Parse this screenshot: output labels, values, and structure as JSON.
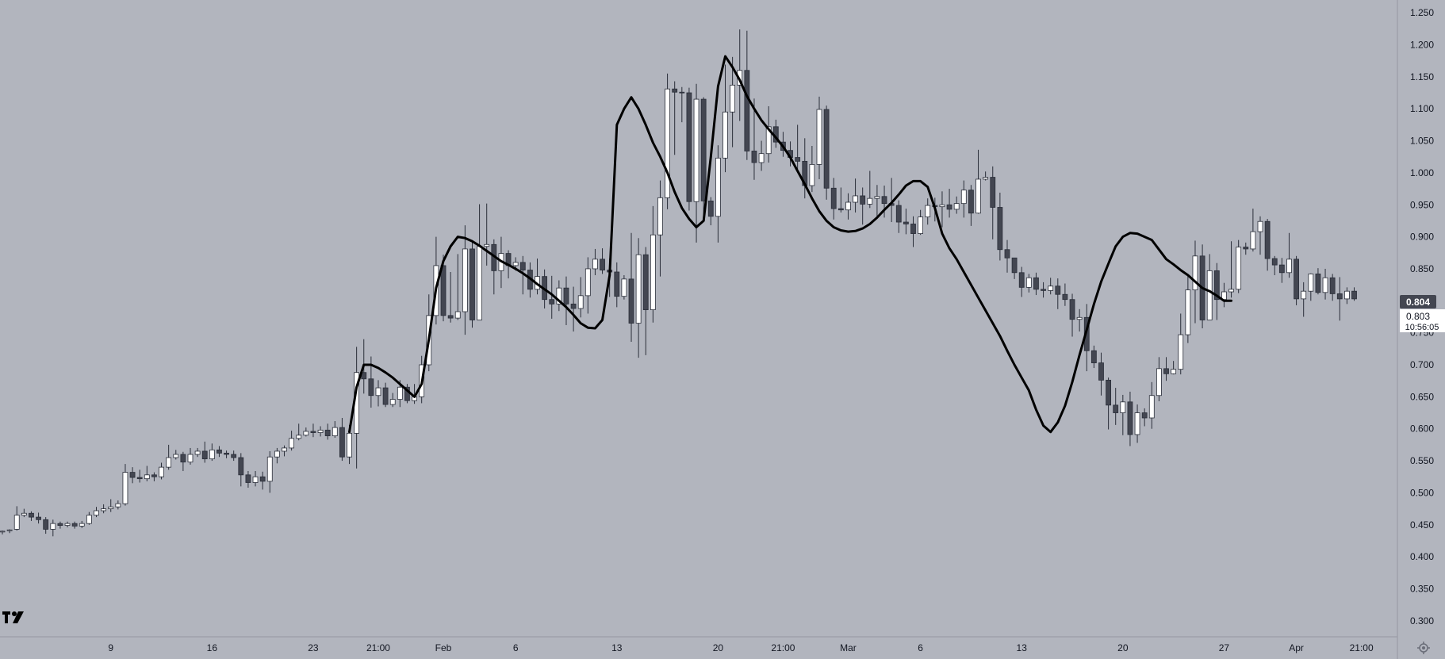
{
  "chart_data": {
    "type": "candlestick",
    "y_ticks": [
      "0.300",
      "0.350",
      "0.400",
      "0.450",
      "0.500",
      "0.550",
      "0.600",
      "0.650",
      "0.700",
      "0.750",
      "0.800",
      "0.850",
      "0.900",
      "0.950",
      "1.000",
      "1.050",
      "1.100",
      "1.150",
      "1.200",
      "1.250"
    ],
    "y_tick_values": [
      0.3,
      0.35,
      0.4,
      0.45,
      0.5,
      0.55,
      0.6,
      0.65,
      0.7,
      0.75,
      0.8,
      0.85,
      0.9,
      0.95,
      1.0,
      1.05,
      1.1,
      1.15,
      1.2,
      1.25
    ],
    "ylim": [
      0.275,
      1.27
    ],
    "x_ticks": [
      {
        "label": "9",
        "index": 15
      },
      {
        "label": "16",
        "index": 29
      },
      {
        "label": "23",
        "index": 43
      },
      {
        "label": "21:00",
        "index": 52
      },
      {
        "label": "Feb",
        "index": 61
      },
      {
        "label": "6",
        "index": 71
      },
      {
        "label": "13",
        "index": 85
      },
      {
        "label": "20",
        "index": 99
      },
      {
        "label": "21:00",
        "index": 108
      },
      {
        "label": "Mar",
        "index": 117
      },
      {
        "label": "6",
        "index": 127
      },
      {
        "label": "13",
        "index": 141
      },
      {
        "label": "20",
        "index": 155
      },
      {
        "label": "27",
        "index": 169
      },
      {
        "label": "Apr",
        "index": 179
      },
      {
        "label": "21:00",
        "index": 188
      }
    ],
    "candles": [
      [
        0.44,
        0.44,
        0.435,
        0.441
      ],
      [
        0.441,
        0.442,
        0.437,
        0.443
      ],
      [
        0.443,
        0.465,
        0.441,
        0.479
      ],
      [
        0.465,
        0.468,
        0.462,
        0.475
      ],
      [
        0.468,
        0.462,
        0.456,
        0.471
      ],
      [
        0.462,
        0.458,
        0.452,
        0.469
      ],
      [
        0.458,
        0.443,
        0.436,
        0.462
      ],
      [
        0.443,
        0.452,
        0.432,
        0.458
      ],
      [
        0.452,
        0.449,
        0.444,
        0.455
      ],
      [
        0.449,
        0.452,
        0.446,
        0.455
      ],
      [
        0.452,
        0.448,
        0.444,
        0.455
      ],
      [
        0.448,
        0.452,
        0.445,
        0.456
      ],
      [
        0.452,
        0.465,
        0.45,
        0.47
      ],
      [
        0.465,
        0.472,
        0.462,
        0.478
      ],
      [
        0.472,
        0.475,
        0.468,
        0.482
      ],
      [
        0.475,
        0.478,
        0.47,
        0.49
      ],
      [
        0.478,
        0.483,
        0.474,
        0.488
      ],
      [
        0.483,
        0.532,
        0.48,
        0.545
      ],
      [
        0.532,
        0.524,
        0.515,
        0.54
      ],
      [
        0.524,
        0.522,
        0.516,
        0.536
      ],
      [
        0.522,
        0.528,
        0.518,
        0.542
      ],
      [
        0.528,
        0.525,
        0.518,
        0.532
      ],
      [
        0.525,
        0.54,
        0.521,
        0.547
      ],
      [
        0.54,
        0.555,
        0.536,
        0.575
      ],
      [
        0.555,
        0.56,
        0.552,
        0.567
      ],
      [
        0.56,
        0.548,
        0.534,
        0.564
      ],
      [
        0.548,
        0.56,
        0.544,
        0.57
      ],
      [
        0.56,
        0.565,
        0.556,
        0.57
      ],
      [
        0.565,
        0.553,
        0.547,
        0.58
      ],
      [
        0.553,
        0.567,
        0.55,
        0.577
      ],
      [
        0.567,
        0.562,
        0.556,
        0.573
      ],
      [
        0.562,
        0.56,
        0.554,
        0.566
      ],
      [
        0.56,
        0.555,
        0.55,
        0.566
      ],
      [
        0.555,
        0.528,
        0.51,
        0.562
      ],
      [
        0.528,
        0.516,
        0.508,
        0.534
      ],
      [
        0.516,
        0.525,
        0.51,
        0.534
      ],
      [
        0.525,
        0.518,
        0.505,
        0.533
      ],
      [
        0.518,
        0.556,
        0.5,
        0.565
      ],
      [
        0.556,
        0.565,
        0.546,
        0.57
      ],
      [
        0.565,
        0.57,
        0.557,
        0.574
      ],
      [
        0.57,
        0.585,
        0.566,
        0.597
      ],
      [
        0.585,
        0.59,
        0.582,
        0.608
      ],
      [
        0.59,
        0.596,
        0.588,
        0.602
      ],
      [
        0.596,
        0.594,
        0.587,
        0.608
      ],
      [
        0.594,
        0.598,
        0.588,
        0.604
      ],
      [
        0.598,
        0.589,
        0.583,
        0.608
      ],
      [
        0.589,
        0.602,
        0.586,
        0.612
      ],
      [
        0.602,
        0.556,
        0.55,
        0.617
      ],
      [
        0.556,
        0.593,
        0.545,
        0.606
      ],
      [
        0.593,
        0.688,
        0.538,
        0.728
      ],
      [
        0.688,
        0.678,
        0.655,
        0.74
      ],
      [
        0.678,
        0.652,
        0.633,
        0.713
      ],
      [
        0.652,
        0.664,
        0.635,
        0.676
      ],
      [
        0.664,
        0.638,
        0.634,
        0.672
      ],
      [
        0.638,
        0.646,
        0.634,
        0.656
      ],
      [
        0.646,
        0.665,
        0.634,
        0.676
      ],
      [
        0.665,
        0.644,
        0.64,
        0.67
      ],
      [
        0.644,
        0.65,
        0.639,
        0.67
      ],
      [
        0.65,
        0.7,
        0.64,
        0.714
      ],
      [
        0.7,
        0.777,
        0.69,
        0.81
      ],
      [
        0.777,
        0.855,
        0.763,
        0.9
      ],
      [
        0.855,
        0.777,
        0.768,
        0.872
      ],
      [
        0.777,
        0.773,
        0.766,
        0.845
      ],
      [
        0.773,
        0.783,
        0.77,
        0.873
      ],
      [
        0.783,
        0.881,
        0.747,
        0.918
      ],
      [
        0.881,
        0.77,
        0.758,
        0.893
      ],
      [
        0.77,
        0.885,
        0.775,
        0.951
      ],
      [
        0.885,
        0.888,
        0.855,
        0.952
      ],
      [
        0.888,
        0.847,
        0.81,
        0.896
      ],
      [
        0.847,
        0.874,
        0.82,
        0.9
      ],
      [
        0.874,
        0.855,
        0.835,
        0.879
      ],
      [
        0.855,
        0.86,
        0.847,
        0.868
      ],
      [
        0.86,
        0.848,
        0.81,
        0.87
      ],
      [
        0.848,
        0.818,
        0.805,
        0.86
      ],
      [
        0.818,
        0.838,
        0.81,
        0.866
      ],
      [
        0.838,
        0.802,
        0.788,
        0.849
      ],
      [
        0.802,
        0.795,
        0.772,
        0.839
      ],
      [
        0.795,
        0.82,
        0.784,
        0.832
      ],
      [
        0.82,
        0.795,
        0.762,
        0.838
      ],
      [
        0.795,
        0.788,
        0.752,
        0.822
      ],
      [
        0.788,
        0.808,
        0.774,
        0.837
      ],
      [
        0.808,
        0.85,
        0.78,
        0.868
      ],
      [
        0.85,
        0.865,
        0.84,
        0.881
      ],
      [
        0.865,
        0.848,
        0.842,
        0.882
      ],
      [
        0.848,
        0.845,
        0.806,
        0.866
      ],
      [
        0.845,
        0.807,
        0.79,
        0.86
      ],
      [
        0.807,
        0.834,
        0.802,
        0.84
      ],
      [
        0.834,
        0.765,
        0.736,
        0.906
      ],
      [
        0.765,
        0.872,
        0.711,
        0.898
      ],
      [
        0.872,
        0.786,
        0.715,
        0.884
      ],
      [
        0.786,
        0.903,
        0.766,
        0.948
      ],
      [
        0.903,
        0.961,
        0.838,
        0.988
      ],
      [
        0.961,
        1.131,
        0.943,
        1.155
      ],
      [
        1.131,
        1.126,
        1.028,
        1.143
      ],
      [
        1.126,
        1.125,
        1.079,
        1.134
      ],
      [
        1.125,
        0.955,
        0.941,
        1.133
      ],
      [
        0.955,
        1.115,
        0.891,
        1.139
      ],
      [
        1.115,
        0.956,
        0.931,
        1.118
      ],
      [
        0.956,
        0.932,
        0.918,
        0.962
      ],
      [
        0.932,
        1.023,
        0.891,
        1.043
      ],
      [
        1.023,
        1.095,
        1.001,
        1.169
      ],
      [
        1.095,
        1.137,
        1.04,
        1.181
      ],
      [
        1.137,
        1.16,
        1.081,
        1.224
      ],
      [
        1.16,
        1.034,
        1.02,
        1.222
      ],
      [
        1.034,
        1.016,
        0.989,
        1.116
      ],
      [
        1.016,
        1.03,
        1.003,
        1.05
      ],
      [
        1.03,
        1.072,
        1.016,
        1.104
      ],
      [
        1.072,
        1.048,
        1.039,
        1.083
      ],
      [
        1.048,
        1.035,
        1.025,
        1.064
      ],
      [
        1.035,
        1.024,
        1.01,
        1.049
      ],
      [
        1.024,
        1.018,
        1.006,
        1.075
      ],
      [
        1.018,
        0.98,
        0.96,
        1.054
      ],
      [
        0.98,
        1.013,
        0.97,
        1.042
      ],
      [
        1.013,
        1.099,
        0.99,
        1.119
      ],
      [
        1.099,
        0.976,
        0.958,
        1.105
      ],
      [
        0.976,
        0.944,
        0.927,
        0.992
      ],
      [
        0.944,
        0.942,
        0.938,
        0.977
      ],
      [
        0.942,
        0.954,
        0.927,
        0.968
      ],
      [
        0.954,
        0.964,
        0.938,
        0.991
      ],
      [
        0.964,
        0.951,
        0.919,
        0.977
      ],
      [
        0.951,
        0.96,
        0.945,
        1.003
      ],
      [
        0.96,
        0.963,
        0.93,
        0.981
      ],
      [
        0.963,
        0.952,
        0.93,
        0.98
      ],
      [
        0.952,
        0.949,
        0.923,
        0.992
      ],
      [
        0.949,
        0.923,
        0.906,
        0.957
      ],
      [
        0.923,
        0.92,
        0.904,
        0.944
      ],
      [
        0.92,
        0.905,
        0.884,
        0.932
      ],
      [
        0.905,
        0.931,
        0.903,
        0.942
      ],
      [
        0.931,
        0.949,
        0.919,
        0.96
      ],
      [
        0.949,
        0.947,
        0.924,
        0.961
      ],
      [
        0.947,
        0.95,
        0.915,
        0.971
      ],
      [
        0.95,
        0.943,
        0.93,
        0.975
      ],
      [
        0.943,
        0.952,
        0.936,
        0.963
      ],
      [
        0.952,
        0.973,
        0.93,
        0.988
      ],
      [
        0.973,
        0.937,
        0.917,
        0.981
      ],
      [
        0.937,
        0.99,
        0.936,
        1.036
      ],
      [
        0.99,
        0.993,
        0.988,
        1.002
      ],
      [
        0.993,
        0.946,
        0.896,
        1.01
      ],
      [
        0.946,
        0.88,
        0.863,
        0.969
      ],
      [
        0.88,
        0.867,
        0.844,
        0.895
      ],
      [
        0.867,
        0.844,
        0.834,
        0.867
      ],
      [
        0.844,
        0.821,
        0.806,
        0.853
      ],
      [
        0.821,
        0.836,
        0.813,
        0.842
      ],
      [
        0.836,
        0.818,
        0.809,
        0.844
      ],
      [
        0.818,
        0.816,
        0.805,
        0.829
      ],
      [
        0.816,
        0.823,
        0.81,
        0.836
      ],
      [
        0.823,
        0.81,
        0.787,
        0.835
      ],
      [
        0.81,
        0.802,
        0.792,
        0.827
      ],
      [
        0.802,
        0.771,
        0.744,
        0.811
      ],
      [
        0.771,
        0.774,
        0.752,
        0.787
      ],
      [
        0.774,
        0.722,
        0.69,
        0.795
      ],
      [
        0.722,
        0.703,
        0.695,
        0.73
      ],
      [
        0.703,
        0.676,
        0.652,
        0.719
      ],
      [
        0.676,
        0.637,
        0.599,
        0.68
      ],
      [
        0.637,
        0.625,
        0.606,
        0.664
      ],
      [
        0.625,
        0.642,
        0.59,
        0.653
      ],
      [
        0.642,
        0.591,
        0.573,
        0.658
      ],
      [
        0.591,
        0.625,
        0.578,
        0.638
      ],
      [
        0.625,
        0.617,
        0.604,
        0.632
      ],
      [
        0.617,
        0.652,
        0.6,
        0.673
      ],
      [
        0.652,
        0.694,
        0.643,
        0.712
      ],
      [
        0.694,
        0.686,
        0.675,
        0.712
      ],
      [
        0.686,
        0.693,
        0.685,
        0.706
      ],
      [
        0.693,
        0.747,
        0.685,
        0.78
      ],
      [
        0.747,
        0.817,
        0.734,
        0.839
      ],
      [
        0.817,
        0.87,
        0.765,
        0.894
      ],
      [
        0.87,
        0.77,
        0.757,
        0.888
      ],
      [
        0.77,
        0.847,
        0.773,
        0.873
      ],
      [
        0.847,
        0.802,
        0.77,
        0.859
      ],
      [
        0.802,
        0.814,
        0.79,
        0.828
      ],
      [
        0.814,
        0.818,
        0.805,
        0.893
      ],
      [
        0.818,
        0.884,
        0.812,
        0.895
      ],
      [
        0.884,
        0.881,
        0.872,
        0.891
      ],
      [
        0.881,
        0.908,
        0.877,
        0.944
      ],
      [
        0.908,
        0.924,
        0.872,
        0.932
      ],
      [
        0.924,
        0.866,
        0.847,
        0.928
      ],
      [
        0.866,
        0.856,
        0.84,
        0.87
      ],
      [
        0.856,
        0.844,
        0.828,
        0.867
      ],
      [
        0.844,
        0.865,
        0.836,
        0.906
      ],
      [
        0.865,
        0.803,
        0.793,
        0.87
      ],
      [
        0.803,
        0.815,
        0.775,
        0.829
      ],
      [
        0.815,
        0.842,
        0.8,
        0.843
      ],
      [
        0.842,
        0.813,
        0.81,
        0.851
      ],
      [
        0.813,
        0.836,
        0.802,
        0.85
      ],
      [
        0.836,
        0.811,
        0.8,
        0.842
      ],
      [
        0.811,
        0.803,
        0.769,
        0.837
      ],
      [
        0.803,
        0.815,
        0.795,
        0.821
      ],
      [
        0.815,
        0.803,
        0.8,
        0.821
      ]
    ],
    "moving_average": [
      null,
      null,
      null,
      null,
      null,
      null,
      null,
      null,
      null,
      null,
      null,
      null,
      null,
      null,
      null,
      null,
      null,
      null,
      null,
      null,
      null,
      null,
      null,
      null,
      null,
      null,
      null,
      null,
      null,
      null,
      null,
      null,
      null,
      null,
      null,
      null,
      null,
      null,
      null,
      null,
      null,
      null,
      null,
      null,
      null,
      null,
      null,
      null,
      0.595,
      0.665,
      0.7,
      0.7,
      0.695,
      0.688,
      0.68,
      0.67,
      0.66,
      0.65,
      0.67,
      0.74,
      0.82,
      0.862,
      0.885,
      0.9,
      0.898,
      0.893,
      0.886,
      0.878,
      0.87,
      0.862,
      0.856,
      0.85,
      0.843,
      0.835,
      0.826,
      0.818,
      0.81,
      0.8,
      0.79,
      0.778,
      0.765,
      0.758,
      0.757,
      0.77,
      0.84,
      1.075,
      1.1,
      1.118,
      1.1,
      1.075,
      1.047,
      1.025,
      1.0,
      0.97,
      0.945,
      0.928,
      0.915,
      0.925,
      1.025,
      1.135,
      1.182,
      1.165,
      1.145,
      1.12,
      1.1,
      1.082,
      1.068,
      1.055,
      1.041,
      1.024,
      1.003,
      0.982,
      0.96,
      0.94,
      0.925,
      0.915,
      0.91,
      0.908,
      0.909,
      0.913,
      0.92,
      0.93,
      0.942,
      0.953,
      0.966,
      0.98,
      0.987,
      0.987,
      0.978,
      0.945,
      0.905,
      0.882,
      0.865,
      0.845,
      0.825,
      0.805,
      0.785,
      0.765,
      0.745,
      0.722,
      0.7,
      0.68,
      0.66,
      0.63,
      0.605,
      0.595,
      0.61,
      0.636,
      0.673,
      0.715,
      0.755,
      0.795,
      0.83,
      0.858,
      0.885,
      0.9,
      0.906,
      0.905,
      0.9,
      0.895,
      0.88,
      0.865,
      0.857,
      0.848,
      0.84,
      0.83,
      0.82,
      0.815,
      0.808,
      0.8,
      0.8
    ],
    "last_price": "0.804",
    "current_price": "0.803",
    "countdown": "10:56:05",
    "colors": {
      "background": "#b2b5be",
      "up_body": "#ffffff",
      "down_body": "#434651",
      "outline": "#2a2e39",
      "ma_line": "#000000",
      "badge": "#434651"
    }
  }
}
